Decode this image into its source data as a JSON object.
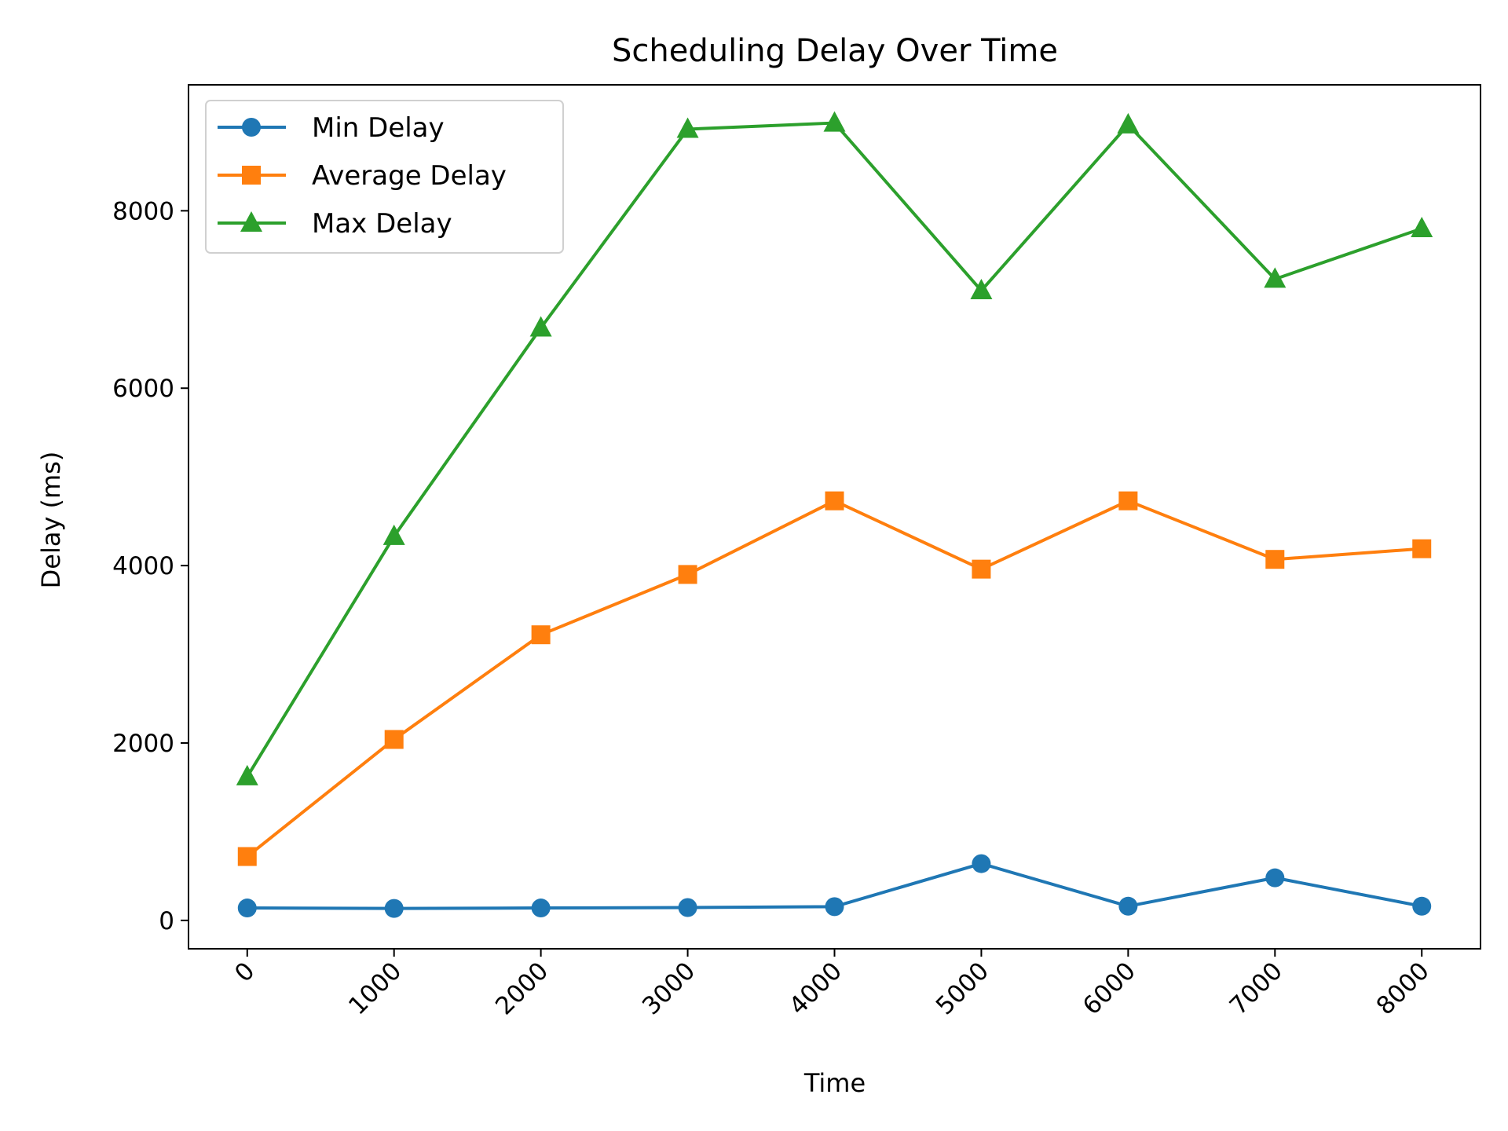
{
  "chart_data": {
    "type": "line",
    "title": "Scheduling Delay Over Time",
    "xlabel": "Time",
    "ylabel": "Delay (ms)",
    "x": [
      0,
      1000,
      2000,
      3000,
      4000,
      5000,
      6000,
      7000,
      8000
    ],
    "x_tick_labels": [
      "0",
      "1000",
      "2000",
      "3000",
      "4000",
      "5000",
      "6000",
      "7000",
      "8000"
    ],
    "y_ticks": [
      0,
      2000,
      4000,
      6000,
      8000
    ],
    "y_tick_labels": [
      "0",
      "2000",
      "4000",
      "6000",
      "8000"
    ],
    "xlim": [
      -400,
      8400
    ],
    "ylim": [
      -320,
      9420
    ],
    "grid": false,
    "legend_position": "top-left",
    "series": [
      {
        "name": "Min Delay",
        "color": "#1f77b4",
        "marker": "circle",
        "values": [
          140,
          135,
          140,
          145,
          155,
          640,
          160,
          480,
          160
        ]
      },
      {
        "name": "Average Delay",
        "color": "#ff7f0e",
        "marker": "square",
        "values": [
          720,
          2040,
          3220,
          3900,
          4730,
          3960,
          4730,
          4070,
          4190
        ]
      },
      {
        "name": "Max Delay",
        "color": "#2ca02c",
        "marker": "triangle",
        "values": [
          1620,
          4330,
          6680,
          8920,
          8990,
          7100,
          8970,
          7230,
          7800
        ]
      }
    ]
  }
}
